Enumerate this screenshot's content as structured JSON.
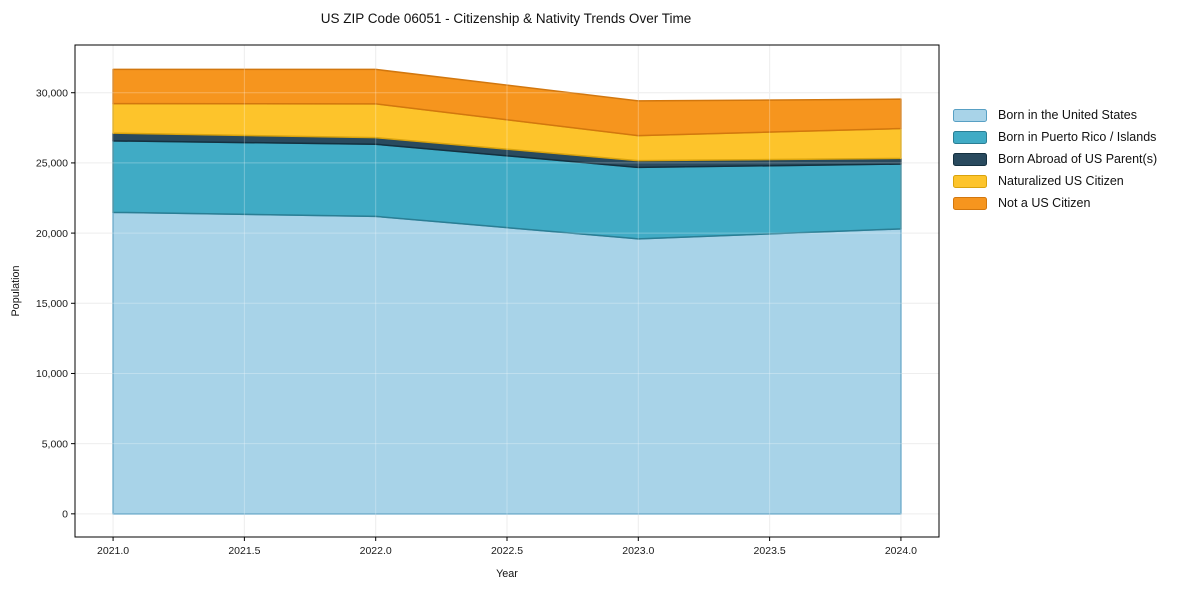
{
  "chart_data": {
    "type": "area",
    "stacked": true,
    "title": "US ZIP Code 06051 - Citizenship & Nativity Trends Over Time",
    "xlabel": "Year",
    "ylabel": "Population",
    "x": [
      2021,
      2022,
      2023,
      2024
    ],
    "series": [
      {
        "name": "Born in the United States",
        "color": "#a8d3e8",
        "edge_color": "#58a0c4",
        "values": [
          21480,
          21190,
          19590,
          20300
        ]
      },
      {
        "name": "Born in Puerto Rico / Islands",
        "color": "#40abc5",
        "edge_color": "#2a7e94",
        "values": [
          5090,
          5140,
          5090,
          4620
        ]
      },
      {
        "name": "Born Abroad of US Parent(s)",
        "color": "#294a5e",
        "edge_color": "#14303f",
        "values": [
          550,
          470,
          480,
          400
        ]
      },
      {
        "name": "Naturalized US Citizen",
        "color": "#fdc42b",
        "edge_color": "#d9a30d",
        "values": [
          2100,
          2410,
          1780,
          2130
        ]
      },
      {
        "name": "Not a US Citizen",
        "color": "#f6951e",
        "edge_color": "#d2770e",
        "values": [
          2440,
          2450,
          2480,
          2090
        ]
      }
    ],
    "totals": [
      31660,
      31660,
      29420,
      29540
    ],
    "xticks": {
      "values": [
        2021.0,
        2021.5,
        2022.0,
        2022.5,
        2023.0,
        2023.5,
        2024.0
      ],
      "labels": [
        "2021.0",
        "2021.5",
        "2022.0",
        "2022.5",
        "2023.0",
        "2023.5",
        "2024.0"
      ]
    },
    "yticks": {
      "values": [
        0,
        5000,
        10000,
        15000,
        20000,
        25000,
        30000
      ],
      "labels": [
        "0",
        "5,000",
        "10,000",
        "15,000",
        "20,000",
        "25,000",
        "30,000"
      ]
    },
    "xlim": [
      2020.855,
      2024.145
    ],
    "ylim": [
      -1650,
      33400
    ],
    "grid": true,
    "grid_color": "#e8e8e8",
    "spine_color": "#000000",
    "background_color": "#ffffff",
    "legend_position": "right-outside"
  }
}
